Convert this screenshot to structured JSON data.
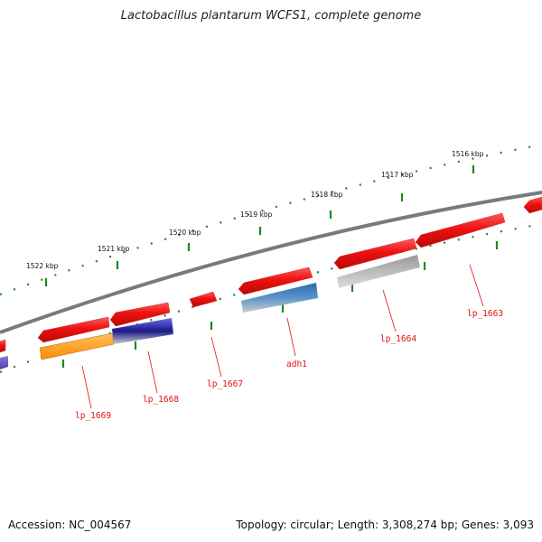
{
  "title": "Lactobacillus plantarum WCFS1, complete genome",
  "footer": {
    "accession": "Accession: NC_004567",
    "topology": "Topology: circular; Length: 3,308,274 bp; Genes: 3,093"
  },
  "ruler_labels": [
    "1522 kbp",
    "1521 kbp",
    "1520 kbp",
    "1519 kbp",
    "1518 kbp",
    "1517 kbp",
    "1516 kbp"
  ],
  "gene_labels": [
    "lp_1669",
    "lp_1668",
    "lp_1667",
    "adh1",
    "lp_1664",
    "lp_1663"
  ],
  "colors": {
    "backbone": "#7a7a7a",
    "tick": "#1a8a1a",
    "gene_forward": "#ee1111",
    "label": "#e01010",
    "cog_orange": "#ff9a1a",
    "cog_navy": "#1a1a8a",
    "cog_steelblue": "#4a84c0",
    "cog_grey": "#bdbdbd",
    "cog_purple": "#7060c0"
  }
}
